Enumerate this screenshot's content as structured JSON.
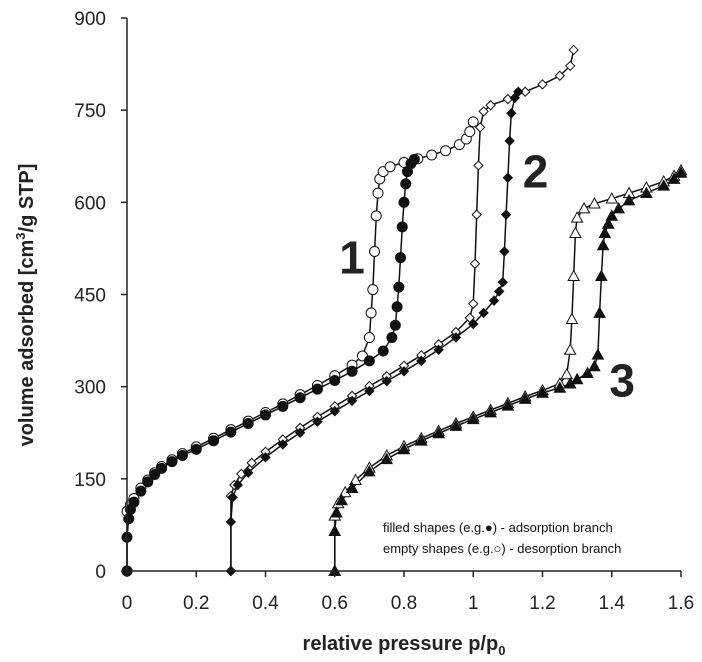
{
  "chart_data": {
    "type": "scatter",
    "title": "",
    "xlabel": "relative pressure p/p",
    "xlabel_sub": "0",
    "ylabel_parts": [
      "volume adsorbed [cm",
      "3",
      "/g STP]"
    ],
    "xlim": [
      0,
      1.6
    ],
    "ylim": [
      0,
      900
    ],
    "x_ticks": [
      "0",
      "0.2",
      "0.4",
      "0.6",
      "0.8",
      "1",
      "1.2",
      "1.4",
      "1.6"
    ],
    "y_ticks": [
      "0",
      "150",
      "300",
      "450",
      "600",
      "750",
      "900"
    ],
    "grid": false,
    "curve_labels": [
      "1",
      "2",
      "3"
    ],
    "legend": {
      "line1": "filled shapes (e.g.●) - adsorption branch",
      "line2": "empty shapes (e.g.○) - desorption branch"
    },
    "series": [
      {
        "label": "1",
        "marker": "circle",
        "adsorption": [
          [
            0,
            0
          ],
          [
            0,
            55
          ],
          [
            0.005,
            85
          ],
          [
            0.01,
            100
          ],
          [
            0.02,
            112
          ],
          [
            0.04,
            130
          ],
          [
            0.06,
            145
          ],
          [
            0.08,
            157
          ],
          [
            0.1,
            167
          ],
          [
            0.13,
            178
          ],
          [
            0.16,
            188
          ],
          [
            0.2,
            198
          ],
          [
            0.25,
            212
          ],
          [
            0.3,
            226
          ],
          [
            0.35,
            240
          ],
          [
            0.4,
            254
          ],
          [
            0.45,
            268
          ],
          [
            0.5,
            282
          ],
          [
            0.55,
            296
          ],
          [
            0.6,
            310
          ],
          [
            0.65,
            325
          ],
          [
            0.7,
            342
          ],
          [
            0.74,
            358
          ],
          [
            0.765,
            380
          ],
          [
            0.775,
            400
          ],
          [
            0.78,
            430
          ],
          [
            0.785,
            462
          ],
          [
            0.79,
            510
          ],
          [
            0.795,
            560
          ],
          [
            0.8,
            600
          ],
          [
            0.805,
            630
          ],
          [
            0.81,
            650
          ],
          [
            0.82,
            663
          ],
          [
            0.83,
            670
          ]
        ],
        "desorption": [
          [
            0,
            0
          ],
          [
            0,
            97
          ],
          [
            0.01,
            108
          ],
          [
            0.02,
            118
          ],
          [
            0.04,
            135
          ],
          [
            0.06,
            148
          ],
          [
            0.08,
            160
          ],
          [
            0.1,
            170
          ],
          [
            0.13,
            181
          ],
          [
            0.16,
            191
          ],
          [
            0.2,
            202
          ],
          [
            0.25,
            216
          ],
          [
            0.3,
            230
          ],
          [
            0.35,
            244
          ],
          [
            0.4,
            258
          ],
          [
            0.45,
            272
          ],
          [
            0.5,
            287
          ],
          [
            0.55,
            302
          ],
          [
            0.6,
            318
          ],
          [
            0.65,
            335
          ],
          [
            0.68,
            350
          ],
          [
            0.7,
            380
          ],
          [
            0.705,
            420
          ],
          [
            0.71,
            458
          ],
          [
            0.715,
            520
          ],
          [
            0.72,
            578
          ],
          [
            0.725,
            615
          ],
          [
            0.73,
            638
          ],
          [
            0.74,
            650
          ],
          [
            0.76,
            658
          ],
          [
            0.8,
            665
          ],
          [
            0.84,
            671
          ],
          [
            0.88,
            677
          ],
          [
            0.92,
            684
          ],
          [
            0.96,
            694
          ],
          [
            0.98,
            703
          ],
          [
            0.99,
            715
          ],
          [
            1.0,
            731
          ]
        ]
      },
      {
        "label": "2",
        "marker": "diamond",
        "adsorption": [
          [
            0.3,
            0
          ],
          [
            0.3,
            80
          ],
          [
            0.305,
            120
          ],
          [
            0.32,
            140
          ],
          [
            0.35,
            160
          ],
          [
            0.4,
            185
          ],
          [
            0.45,
            206
          ],
          [
            0.5,
            225
          ],
          [
            0.55,
            243
          ],
          [
            0.6,
            260
          ],
          [
            0.65,
            277
          ],
          [
            0.7,
            293
          ],
          [
            0.75,
            309
          ],
          [
            0.8,
            325
          ],
          [
            0.85,
            342
          ],
          [
            0.9,
            360
          ],
          [
            0.95,
            380
          ],
          [
            1.0,
            402
          ],
          [
            1.03,
            420
          ],
          [
            1.06,
            440
          ],
          [
            1.075,
            455
          ],
          [
            1.085,
            470
          ],
          [
            1.09,
            520
          ],
          [
            1.095,
            580
          ],
          [
            1.1,
            640
          ],
          [
            1.105,
            700
          ],
          [
            1.11,
            745
          ],
          [
            1.12,
            770
          ],
          [
            1.13,
            780
          ]
        ],
        "desorption": [
          [
            0.3,
            0
          ],
          [
            0.3,
            122
          ],
          [
            0.31,
            140
          ],
          [
            0.33,
            158
          ],
          [
            0.36,
            176
          ],
          [
            0.4,
            194
          ],
          [
            0.45,
            214
          ],
          [
            0.5,
            233
          ],
          [
            0.55,
            251
          ],
          [
            0.6,
            268
          ],
          [
            0.65,
            285
          ],
          [
            0.7,
            301
          ],
          [
            0.75,
            317
          ],
          [
            0.8,
            334
          ],
          [
            0.85,
            351
          ],
          [
            0.9,
            369
          ],
          [
            0.95,
            389
          ],
          [
            0.99,
            412
          ],
          [
            1.0,
            435
          ],
          [
            1.005,
            500
          ],
          [
            1.01,
            580
          ],
          [
            1.015,
            660
          ],
          [
            1.02,
            722
          ],
          [
            1.03,
            748
          ],
          [
            1.05,
            758
          ],
          [
            1.1,
            768
          ],
          [
            1.15,
            780
          ],
          [
            1.2,
            792
          ],
          [
            1.25,
            806
          ],
          [
            1.28,
            822
          ],
          [
            1.29,
            848
          ]
        ]
      },
      {
        "label": "3",
        "marker": "triangle",
        "adsorption": [
          [
            0.6,
            0
          ],
          [
            0.6,
            65
          ],
          [
            0.605,
            95
          ],
          [
            0.62,
            115
          ],
          [
            0.65,
            135
          ],
          [
            0.7,
            162
          ],
          [
            0.75,
            182
          ],
          [
            0.8,
            198
          ],
          [
            0.85,
            212
          ],
          [
            0.9,
            224
          ],
          [
            0.95,
            236
          ],
          [
            1.0,
            247
          ],
          [
            1.05,
            258
          ],
          [
            1.1,
            269
          ],
          [
            1.15,
            280
          ],
          [
            1.2,
            290
          ],
          [
            1.25,
            298
          ],
          [
            1.28,
            305
          ],
          [
            1.3,
            312
          ],
          [
            1.33,
            322
          ],
          [
            1.35,
            333
          ],
          [
            1.36,
            352
          ],
          [
            1.365,
            420
          ],
          [
            1.37,
            480
          ],
          [
            1.375,
            530
          ],
          [
            1.38,
            550
          ],
          [
            1.39,
            565
          ],
          [
            1.4,
            578
          ],
          [
            1.42,
            590
          ],
          [
            1.45,
            603
          ],
          [
            1.5,
            615
          ],
          [
            1.55,
            627
          ],
          [
            1.58,
            638
          ],
          [
            1.6,
            648
          ]
        ],
        "desorption": [
          [
            0.6,
            0
          ],
          [
            0.6,
            90
          ],
          [
            0.61,
            110
          ],
          [
            0.63,
            128
          ],
          [
            0.66,
            148
          ],
          [
            0.7,
            168
          ],
          [
            0.75,
            188
          ],
          [
            0.8,
            203
          ],
          [
            0.85,
            216
          ],
          [
            0.9,
            228
          ],
          [
            0.95,
            240
          ],
          [
            1.0,
            251
          ],
          [
            1.05,
            262
          ],
          [
            1.1,
            273
          ],
          [
            1.15,
            284
          ],
          [
            1.2,
            294
          ],
          [
            1.25,
            305
          ],
          [
            1.27,
            320
          ],
          [
            1.28,
            360
          ],
          [
            1.285,
            410
          ],
          [
            1.29,
            480
          ],
          [
            1.295,
            550
          ],
          [
            1.3,
            575
          ],
          [
            1.32,
            590
          ],
          [
            1.35,
            598
          ],
          [
            1.4,
            606
          ],
          [
            1.45,
            615
          ],
          [
            1.5,
            624
          ],
          [
            1.55,
            634
          ],
          [
            1.58,
            643
          ],
          [
            1.6,
            652
          ]
        ]
      }
    ]
  }
}
